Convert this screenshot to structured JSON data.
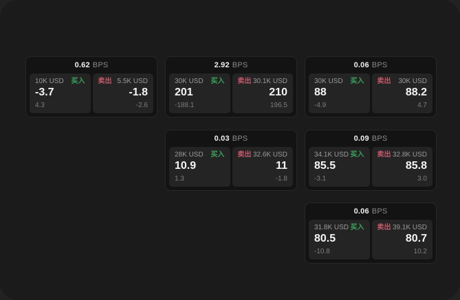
{
  "labels": {
    "bps_suffix": "BPS",
    "buy": "买入",
    "sell": "卖出"
  },
  "colors": {
    "buy_green": "#3ca25c",
    "sell_red": "#c2596a",
    "panel_bg": "#1b1b1b",
    "card_bg": "#131313",
    "tile_bg": "#242424"
  },
  "cards": [
    {
      "row": 0,
      "col": 0,
      "bps": "0.62",
      "buy_size": "10K USD",
      "buy_value": "-3.7",
      "buy_sub": "4.3",
      "sell_size": "5.5K USD",
      "sell_value": "-1.8",
      "sell_sub": "-2.6"
    },
    {
      "row": 0,
      "col": 1,
      "bps": "2.92",
      "buy_size": "30K USD",
      "buy_value": "201",
      "buy_sub": "-188.1",
      "sell_size": "30.1K USD",
      "sell_value": "210",
      "sell_sub": "196.5"
    },
    {
      "row": 0,
      "col": 2,
      "bps": "0.06",
      "buy_size": "30K USD",
      "buy_value": "88",
      "buy_sub": "-4.9",
      "sell_size": "30K USD",
      "sell_value": "88.2",
      "sell_sub": "4.7"
    },
    {
      "row": 1,
      "col": 1,
      "bps": "0.03",
      "buy_size": "28K USD",
      "buy_value": "10.9",
      "buy_sub": "1.3",
      "sell_size": "32.6K USD",
      "sell_value": "11",
      "sell_sub": "-1.8"
    },
    {
      "row": 1,
      "col": 2,
      "bps": "0.09",
      "buy_size": "34.1K USD",
      "buy_value": "85.5",
      "buy_sub": "-3.1",
      "sell_size": "32.8K USD",
      "sell_value": "85.8",
      "sell_sub": "3.0"
    },
    {
      "row": 2,
      "col": 2,
      "bps": "0.06",
      "buy_size": "31.8K USD",
      "buy_value": "80.5",
      "buy_sub": "-10.8",
      "sell_size": "39.1K USD",
      "sell_value": "80.7",
      "sell_sub": "10.2"
    }
  ]
}
